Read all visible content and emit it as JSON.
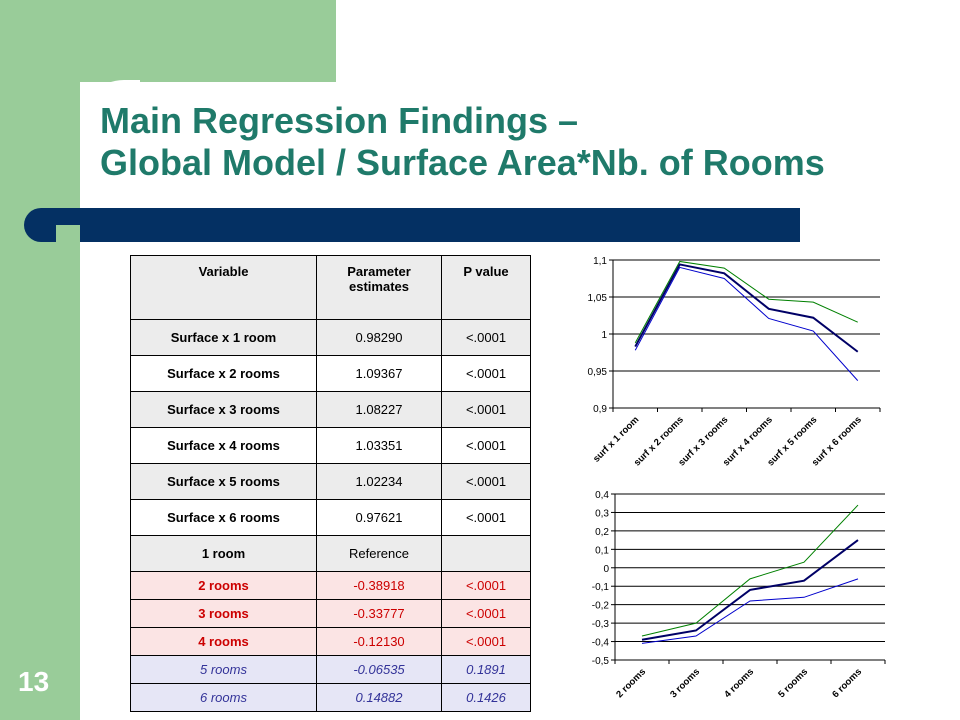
{
  "slide": {
    "title_line1": "Main Regression Findings –",
    "title_line2": "Global Model / Surface Area*Nb. of Rooms",
    "page_number": "13"
  },
  "table": {
    "headers": [
      "Variable",
      "Parameter estimates",
      "P value"
    ],
    "rows": [
      {
        "variable": "Surface x 1 room",
        "estimate": "0.98290",
        "p": "<.0001",
        "style": "surface"
      },
      {
        "variable": "Surface x 2 rooms",
        "estimate": "1.09367",
        "p": "<.0001",
        "style": "surface"
      },
      {
        "variable": "Surface x 3 rooms",
        "estimate": "1.08227",
        "p": "<.0001",
        "style": "surface"
      },
      {
        "variable": "Surface x 4 rooms",
        "estimate": "1.03351",
        "p": "<.0001",
        "style": "surface"
      },
      {
        "variable": "Surface x 5 rooms",
        "estimate": "1.02234",
        "p": "<.0001",
        "style": "surface"
      },
      {
        "variable": "Surface x 6 rooms",
        "estimate": "0.97621",
        "p": "<.0001",
        "style": "surface"
      },
      {
        "variable": "1 room",
        "estimate": "Reference",
        "p": "",
        "style": "reference"
      },
      {
        "variable": "2 rooms",
        "estimate": "-0.38918",
        "p": "<.0001",
        "style": "significant"
      },
      {
        "variable": "3 rooms",
        "estimate": "-0.33777",
        "p": "<.0001",
        "style": "significant"
      },
      {
        "variable": "4 rooms",
        "estimate": "-0.12130",
        "p": "<.0001",
        "style": "significant"
      },
      {
        "variable": "5 rooms",
        "estimate": "-0.06535",
        "p": "0.1891",
        "style": "not_significant"
      },
      {
        "variable": "6 rooms",
        "estimate": "0.14882",
        "p": "0.1426",
        "style": "not_significant"
      }
    ]
  },
  "colors": {
    "title": "#1f7a6a",
    "green_panel": "#99cc99",
    "bar": "#043063",
    "estimate_line": "#000066",
    "upper_line": "#008000",
    "lower_line": "#0000cc",
    "significant_text": "#cc0000"
  },
  "chart_data": [
    {
      "type": "line",
      "categories": [
        "surf x 1 room",
        "surf x 2 rooms",
        "surf x 3 rooms",
        "surf x 4 rooms",
        "surf x 5 rooms",
        "surf x 6 rooms"
      ],
      "y_ticks": [
        "1,1",
        "1,05",
        "1",
        "0,95",
        "0,9"
      ],
      "ylim": [
        0.9,
        1.1
      ],
      "grid": true,
      "legend": "none",
      "series": [
        {
          "role": "upper",
          "color": "#008000",
          "values": [
            0.988,
            1.098,
            1.089,
            1.047,
            1.043,
            1.016
          ]
        },
        {
          "role": "estimate",
          "color": "#000066",
          "values": [
            0.983,
            1.094,
            1.082,
            1.034,
            1.022,
            0.976
          ]
        },
        {
          "role": "lower",
          "color": "#0000cc",
          "values": [
            0.978,
            1.09,
            1.075,
            1.021,
            1.004,
            0.937
          ]
        }
      ]
    },
    {
      "type": "line",
      "categories": [
        "2 rooms",
        "3 rooms",
        "4 rooms",
        "5 rooms",
        "6 rooms"
      ],
      "y_ticks": [
        "0,4",
        "0,3",
        "0,2",
        "0,1",
        "0",
        "-0,1",
        "-0,2",
        "-0,3",
        "-0,4",
        "-0,5"
      ],
      "ylim": [
        -0.5,
        0.4
      ],
      "grid": true,
      "legend": "none",
      "series": [
        {
          "role": "upper",
          "color": "#008000",
          "values": [
            -0.37,
            -0.3,
            -0.06,
            0.03,
            0.34
          ]
        },
        {
          "role": "estimate",
          "color": "#000066",
          "values": [
            -0.39,
            -0.34,
            -0.12,
            -0.07,
            0.15
          ]
        },
        {
          "role": "lower",
          "color": "#0000cc",
          "values": [
            -0.41,
            -0.37,
            -0.18,
            -0.16,
            -0.06
          ]
        }
      ]
    }
  ]
}
